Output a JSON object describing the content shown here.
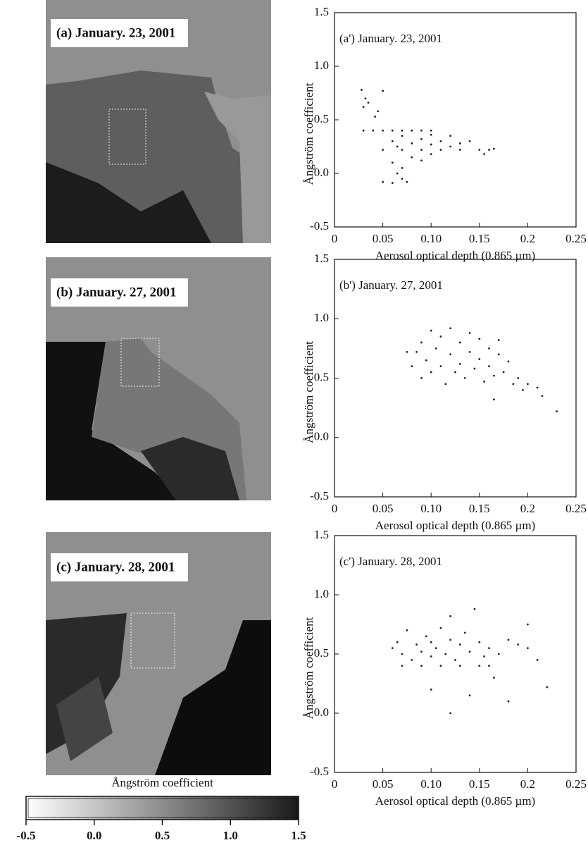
{
  "images": [
    {
      "label": "(a) January. 23, 2001"
    },
    {
      "label": "(b) January. 27, 2001"
    },
    {
      "label": "(c) January. 28, 2001"
    }
  ],
  "chart_data": [
    {
      "type": "scatter",
      "annotation": "(a') January. 23, 2001",
      "xlabel": "Aerosol optical depth (0.865 µm)",
      "ylabel": "Ångström coefficient",
      "color": "#222222",
      "xlim": [
        0,
        0.25
      ],
      "ylim": [
        -0.5,
        1.5
      ],
      "xticks": [
        0,
        0.05,
        {
          "value": 0.1,
          "label": "0.10"
        },
        0.15,
        0.2,
        0.25
      ],
      "yticks": [
        -0.5,
        {
          "value": 0,
          "label": "0.0"
        },
        0.5,
        {
          "value": 1,
          "label": "1.0"
        },
        1.5
      ],
      "x": [
        0.03,
        0.04,
        0.05,
        0.06,
        0.07,
        0.08,
        0.09,
        0.1,
        0.05,
        0.07,
        0.09,
        0.11,
        0.13,
        0.15,
        0.16,
        0.03,
        0.032,
        0.035,
        0.028,
        0.045,
        0.05,
        0.042,
        0.06,
        0.07,
        0.08,
        0.09,
        0.1,
        0.11,
        0.12,
        0.13,
        0.14,
        0.12,
        0.1,
        0.065,
        0.06,
        0.07,
        0.08,
        0.09,
        0.1,
        0.05,
        0.06,
        0.07,
        0.075,
        0.065,
        0.155,
        0.165
      ],
      "values": [
        0.4,
        0.4,
        0.4,
        0.4,
        0.4,
        0.4,
        0.4,
        0.4,
        0.22,
        0.22,
        0.22,
        0.22,
        0.22,
        0.22,
        0.22,
        0.62,
        0.7,
        0.66,
        0.78,
        0.58,
        0.77,
        0.53,
        0.3,
        0.35,
        0.28,
        0.32,
        0.27,
        0.3,
        0.35,
        0.28,
        0.3,
        0.25,
        0.36,
        0.25,
        0.1,
        0.05,
        0.15,
        0.12,
        0.18,
        -0.08,
        -0.09,
        -0.05,
        -0.08,
        0.0,
        0.18,
        0.23
      ]
    },
    {
      "type": "scatter",
      "annotation": "(b') January. 27, 2001",
      "xlabel": "Aerosol optical depth (0.865 µm)",
      "ylabel": "Ångström coefficient",
      "color": "#222222",
      "xlim": [
        0,
        0.25
      ],
      "ylim": [
        -0.5,
        1.5
      ],
      "xticks": [
        0,
        0.05,
        {
          "value": 0.1,
          "label": "0.10"
        },
        0.15,
        0.2,
        0.25
      ],
      "yticks": [
        -0.5,
        {
          "value": 0,
          "label": "0.0"
        },
        0.5,
        {
          "value": 1,
          "label": "1.0"
        },
        1.5
      ],
      "x": [
        0.08,
        0.085,
        0.09,
        0.09,
        0.095,
        0.1,
        0.1,
        0.105,
        0.11,
        0.11,
        0.115,
        0.12,
        0.12,
        0.125,
        0.13,
        0.13,
        0.135,
        0.14,
        0.14,
        0.145,
        0.15,
        0.15,
        0.155,
        0.16,
        0.16,
        0.165,
        0.17,
        0.17,
        0.175,
        0.18,
        0.185,
        0.19,
        0.195,
        0.2,
        0.21,
        0.215,
        0.23,
        0.165,
        0.075
      ],
      "values": [
        0.6,
        0.72,
        0.8,
        0.5,
        0.65,
        0.9,
        0.55,
        0.75,
        0.6,
        0.85,
        0.45,
        0.7,
        0.92,
        0.55,
        0.8,
        0.62,
        0.5,
        0.72,
        0.88,
        0.58,
        0.66,
        0.83,
        0.47,
        0.75,
        0.6,
        0.52,
        0.7,
        0.82,
        0.55,
        0.64,
        0.45,
        0.5,
        0.4,
        0.45,
        0.42,
        0.35,
        0.22,
        0.32,
        0.72
      ]
    },
    {
      "type": "scatter",
      "annotation": "(c') January. 28, 2001",
      "xlabel": "Aerosol optical depth (0.865 µm)",
      "ylabel": "Ångström coefficient",
      "color": "#222222",
      "xlim": [
        0,
        0.25
      ],
      "ylim": [
        -0.5,
        1.5
      ],
      "xticks": [
        0,
        0.05,
        {
          "value": 0.1,
          "label": "0.10"
        },
        0.15,
        0.2,
        0.25
      ],
      "yticks": [
        -0.5,
        {
          "value": 0,
          "label": "0.0"
        },
        0.5,
        {
          "value": 1,
          "label": "1.0"
        },
        1.5
      ],
      "x": [
        0.06,
        0.065,
        0.07,
        0.075,
        0.08,
        0.085,
        0.09,
        0.095,
        0.1,
        0.1,
        0.105,
        0.11,
        0.115,
        0.12,
        0.125,
        0.13,
        0.135,
        0.14,
        0.145,
        0.15,
        0.155,
        0.16,
        0.17,
        0.18,
        0.19,
        0.2,
        0.21,
        0.22,
        0.2,
        0.07,
        0.09,
        0.11,
        0.13,
        0.15,
        0.16,
        0.12,
        0.1,
        0.14,
        0.18,
        0.165,
        0.12
      ],
      "values": [
        0.55,
        0.6,
        0.5,
        0.7,
        0.45,
        0.58,
        0.52,
        0.65,
        0.48,
        0.6,
        0.55,
        0.72,
        0.5,
        0.62,
        0.45,
        0.58,
        0.68,
        0.52,
        0.88,
        0.6,
        0.48,
        0.55,
        0.5,
        0.62,
        0.58,
        0.55,
        0.45,
        0.22,
        0.75,
        0.4,
        0.4,
        0.4,
        0.4,
        0.4,
        0.4,
        0.0,
        0.2,
        0.15,
        0.1,
        0.3,
        0.82
      ]
    },
    {
      "type": "colorbar",
      "title": "Ångström coefficient",
      "colors": [
        "#ffffff",
        "#1a1a1a"
      ],
      "xlim": [
        -0.5,
        1.5
      ],
      "xticks": [
        -0.5,
        {
          "value": 0,
          "label": "0.0"
        },
        0.5,
        {
          "value": 1,
          "label": "1.0"
        },
        1.5
      ]
    }
  ]
}
